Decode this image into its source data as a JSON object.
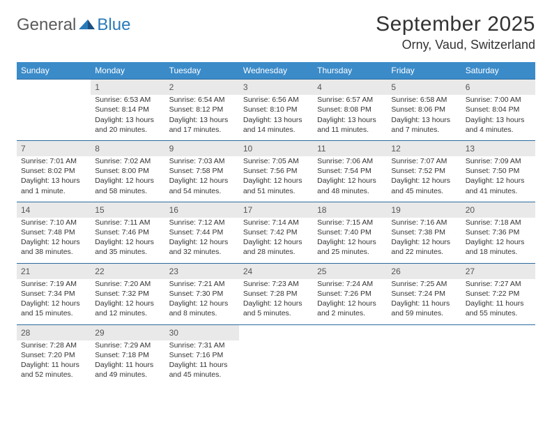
{
  "logo": {
    "text1": "General",
    "text2": "Blue"
  },
  "title": "September 2025",
  "location": "Orny, Vaud, Switzerland",
  "colors": {
    "header_bg": "#3b8bc9",
    "header_text": "#ffffff",
    "daynum_bg": "#e9e9e9",
    "border": "#2a6aa0",
    "text": "#333333"
  },
  "weekdays": [
    "Sunday",
    "Monday",
    "Tuesday",
    "Wednesday",
    "Thursday",
    "Friday",
    "Saturday"
  ],
  "weeks": [
    [
      null,
      {
        "n": "1",
        "sr": "Sunrise: 6:53 AM",
        "ss": "Sunset: 8:14 PM",
        "dl": "Daylight: 13 hours and 20 minutes."
      },
      {
        "n": "2",
        "sr": "Sunrise: 6:54 AM",
        "ss": "Sunset: 8:12 PM",
        "dl": "Daylight: 13 hours and 17 minutes."
      },
      {
        "n": "3",
        "sr": "Sunrise: 6:56 AM",
        "ss": "Sunset: 8:10 PM",
        "dl": "Daylight: 13 hours and 14 minutes."
      },
      {
        "n": "4",
        "sr": "Sunrise: 6:57 AM",
        "ss": "Sunset: 8:08 PM",
        "dl": "Daylight: 13 hours and 11 minutes."
      },
      {
        "n": "5",
        "sr": "Sunrise: 6:58 AM",
        "ss": "Sunset: 8:06 PM",
        "dl": "Daylight: 13 hours and 7 minutes."
      },
      {
        "n": "6",
        "sr": "Sunrise: 7:00 AM",
        "ss": "Sunset: 8:04 PM",
        "dl": "Daylight: 13 hours and 4 minutes."
      }
    ],
    [
      {
        "n": "7",
        "sr": "Sunrise: 7:01 AM",
        "ss": "Sunset: 8:02 PM",
        "dl": "Daylight: 13 hours and 1 minute."
      },
      {
        "n": "8",
        "sr": "Sunrise: 7:02 AM",
        "ss": "Sunset: 8:00 PM",
        "dl": "Daylight: 12 hours and 58 minutes."
      },
      {
        "n": "9",
        "sr": "Sunrise: 7:03 AM",
        "ss": "Sunset: 7:58 PM",
        "dl": "Daylight: 12 hours and 54 minutes."
      },
      {
        "n": "10",
        "sr": "Sunrise: 7:05 AM",
        "ss": "Sunset: 7:56 PM",
        "dl": "Daylight: 12 hours and 51 minutes."
      },
      {
        "n": "11",
        "sr": "Sunrise: 7:06 AM",
        "ss": "Sunset: 7:54 PM",
        "dl": "Daylight: 12 hours and 48 minutes."
      },
      {
        "n": "12",
        "sr": "Sunrise: 7:07 AM",
        "ss": "Sunset: 7:52 PM",
        "dl": "Daylight: 12 hours and 45 minutes."
      },
      {
        "n": "13",
        "sr": "Sunrise: 7:09 AM",
        "ss": "Sunset: 7:50 PM",
        "dl": "Daylight: 12 hours and 41 minutes."
      }
    ],
    [
      {
        "n": "14",
        "sr": "Sunrise: 7:10 AM",
        "ss": "Sunset: 7:48 PM",
        "dl": "Daylight: 12 hours and 38 minutes."
      },
      {
        "n": "15",
        "sr": "Sunrise: 7:11 AM",
        "ss": "Sunset: 7:46 PM",
        "dl": "Daylight: 12 hours and 35 minutes."
      },
      {
        "n": "16",
        "sr": "Sunrise: 7:12 AM",
        "ss": "Sunset: 7:44 PM",
        "dl": "Daylight: 12 hours and 32 minutes."
      },
      {
        "n": "17",
        "sr": "Sunrise: 7:14 AM",
        "ss": "Sunset: 7:42 PM",
        "dl": "Daylight: 12 hours and 28 minutes."
      },
      {
        "n": "18",
        "sr": "Sunrise: 7:15 AM",
        "ss": "Sunset: 7:40 PM",
        "dl": "Daylight: 12 hours and 25 minutes."
      },
      {
        "n": "19",
        "sr": "Sunrise: 7:16 AM",
        "ss": "Sunset: 7:38 PM",
        "dl": "Daylight: 12 hours and 22 minutes."
      },
      {
        "n": "20",
        "sr": "Sunrise: 7:18 AM",
        "ss": "Sunset: 7:36 PM",
        "dl": "Daylight: 12 hours and 18 minutes."
      }
    ],
    [
      {
        "n": "21",
        "sr": "Sunrise: 7:19 AM",
        "ss": "Sunset: 7:34 PM",
        "dl": "Daylight: 12 hours and 15 minutes."
      },
      {
        "n": "22",
        "sr": "Sunrise: 7:20 AM",
        "ss": "Sunset: 7:32 PM",
        "dl": "Daylight: 12 hours and 12 minutes."
      },
      {
        "n": "23",
        "sr": "Sunrise: 7:21 AM",
        "ss": "Sunset: 7:30 PM",
        "dl": "Daylight: 12 hours and 8 minutes."
      },
      {
        "n": "24",
        "sr": "Sunrise: 7:23 AM",
        "ss": "Sunset: 7:28 PM",
        "dl": "Daylight: 12 hours and 5 minutes."
      },
      {
        "n": "25",
        "sr": "Sunrise: 7:24 AM",
        "ss": "Sunset: 7:26 PM",
        "dl": "Daylight: 12 hours and 2 minutes."
      },
      {
        "n": "26",
        "sr": "Sunrise: 7:25 AM",
        "ss": "Sunset: 7:24 PM",
        "dl": "Daylight: 11 hours and 59 minutes."
      },
      {
        "n": "27",
        "sr": "Sunrise: 7:27 AM",
        "ss": "Sunset: 7:22 PM",
        "dl": "Daylight: 11 hours and 55 minutes."
      }
    ],
    [
      {
        "n": "28",
        "sr": "Sunrise: 7:28 AM",
        "ss": "Sunset: 7:20 PM",
        "dl": "Daylight: 11 hours and 52 minutes."
      },
      {
        "n": "29",
        "sr": "Sunrise: 7:29 AM",
        "ss": "Sunset: 7:18 PM",
        "dl": "Daylight: 11 hours and 49 minutes."
      },
      {
        "n": "30",
        "sr": "Sunrise: 7:31 AM",
        "ss": "Sunset: 7:16 PM",
        "dl": "Daylight: 11 hours and 45 minutes."
      },
      null,
      null,
      null,
      null
    ]
  ]
}
